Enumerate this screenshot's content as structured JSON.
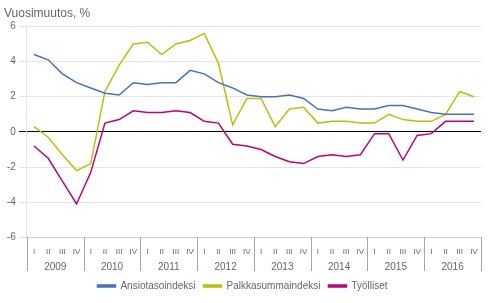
{
  "chart_data": {
    "type": "line",
    "title": "Vuosimuutos, %",
    "categories": [
      "I",
      "II",
      "III",
      "IV",
      "I",
      "II",
      "III",
      "IV",
      "I",
      "II",
      "III",
      "IV",
      "I",
      "II",
      "III",
      "IV",
      "I",
      "II",
      "III",
      "IV",
      "I",
      "II",
      "III",
      "IV",
      "I",
      "II",
      "III",
      "IV",
      "I",
      "II",
      "III",
      "IV"
    ],
    "x_groups": [
      2009,
      2010,
      2011,
      2012,
      2013,
      2014,
      2015,
      2016
    ],
    "series": [
      {
        "name": "Ansiotasoindeksi",
        "color": "#4472C4",
        "values": [
          4.4,
          4.1,
          3.3,
          2.8,
          2.5,
          2.2,
          2.1,
          2.8,
          2.7,
          2.8,
          2.8,
          3.5,
          3.3,
          2.8,
          2.5,
          2.1,
          2.0,
          2.0,
          2.1,
          1.9,
          1.3,
          1.2,
          1.4,
          1.3,
          1.3,
          1.5,
          1.5,
          1.3,
          1.1,
          1.0,
          1.0,
          1.0
        ]
      },
      {
        "name": "Palkkasummaindeksi",
        "color": "#BFBF00",
        "values": [
          0.3,
          -0.3,
          -1.3,
          -2.2,
          -1.8,
          2.3,
          3.8,
          5.0,
          5.1,
          4.4,
          5.0,
          5.2,
          5.6,
          3.9,
          0.4,
          1.9,
          1.9,
          0.3,
          1.3,
          1.4,
          0.5,
          0.6,
          0.6,
          0.5,
          0.5,
          1.0,
          0.7,
          0.6,
          0.6,
          1.0,
          2.3,
          2.0
        ]
      },
      {
        "name": "Työlliset",
        "color": "#C00080",
        "values": [
          -0.8,
          -1.5,
          -2.8,
          -4.1,
          -2.3,
          0.5,
          0.7,
          1.2,
          1.1,
          1.1,
          1.2,
          1.1,
          0.6,
          0.5,
          -0.7,
          -0.8,
          -1.0,
          -1.4,
          -1.7,
          -1.8,
          -1.4,
          -1.3,
          -1.4,
          -1.3,
          -0.1,
          -0.1,
          -1.6,
          -0.2,
          -0.1,
          0.6,
          0.6,
          0.6
        ]
      }
    ],
    "ylim": [
      -6,
      6
    ],
    "yticks": [
      -6,
      -4,
      -2,
      0,
      2,
      4,
      6
    ],
    "grid": true,
    "legend": "bottom"
  }
}
